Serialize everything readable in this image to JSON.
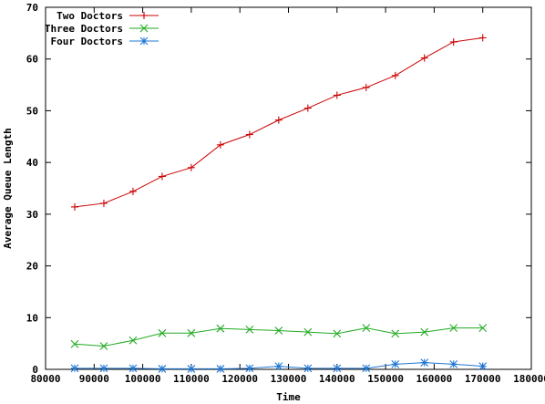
{
  "chart_data": {
    "type": "line",
    "xlabel": "Time",
    "ylabel": "Average Queue Length",
    "xlim": [
      80000,
      180000
    ],
    "ylim": [
      0,
      70
    ],
    "xticks": [
      80000,
      90000,
      100000,
      110000,
      120000,
      130000,
      140000,
      150000,
      160000,
      170000,
      180000
    ],
    "yticks": [
      0,
      10,
      20,
      30,
      40,
      50,
      60,
      70
    ],
    "grid": false,
    "legend_position": "top-left",
    "x": [
      86000,
      92000,
      98000,
      104000,
      110000,
      116000,
      122000,
      128000,
      134000,
      140000,
      146000,
      152000,
      158000,
      164000,
      170000
    ],
    "series": [
      {
        "name": "Two Doctors",
        "color": "#cc0000",
        "marker": "plus",
        "values": [
          31.4,
          32.1,
          34.4,
          37.3,
          39.0,
          43.4,
          45.4,
          48.2,
          50.5,
          53.0,
          54.5,
          56.8,
          60.2,
          63.3,
          64.1
        ]
      },
      {
        "name": "Three Doctors",
        "color": "#22aa22",
        "marker": "x",
        "values": [
          4.9,
          4.5,
          5.6,
          7.0,
          7.0,
          7.9,
          7.7,
          7.5,
          7.2,
          6.9,
          8.0,
          6.9,
          7.2,
          8.0,
          8.0
        ]
      },
      {
        "name": "Four Doctors",
        "color": "#1f77d4",
        "marker": "star",
        "values": [
          0.2,
          0.2,
          0.2,
          0.1,
          0.1,
          0.1,
          0.2,
          0.6,
          0.2,
          0.2,
          0.2,
          1.0,
          1.3,
          1.0,
          0.6
        ]
      }
    ]
  }
}
